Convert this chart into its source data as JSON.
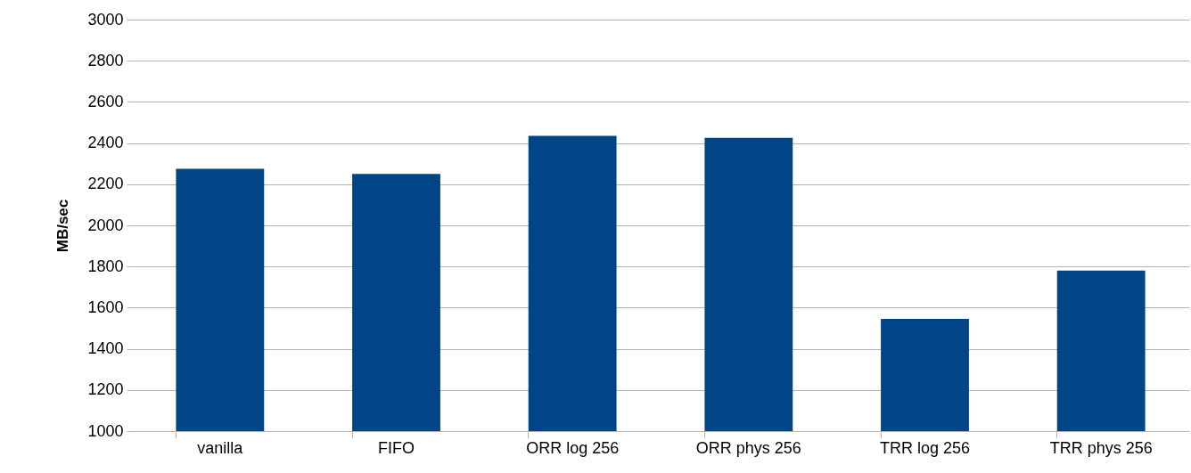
{
  "chart_data": {
    "type": "bar",
    "ylabel": "MB/sec",
    "categories": [
      "vanilla",
      "FIFO",
      "ORR log 256",
      "ORR phys 256",
      "TRR log 256",
      "TRR phys 256"
    ],
    "values": [
      2275,
      2250,
      2435,
      2425,
      1545,
      1780
    ],
    "color": "#004586",
    "ylim": [
      1000,
      3000
    ],
    "yticks": [
      1000,
      1200,
      1400,
      1600,
      1800,
      2000,
      2200,
      2400,
      2600,
      2800,
      3000
    ],
    "grid": "y"
  }
}
